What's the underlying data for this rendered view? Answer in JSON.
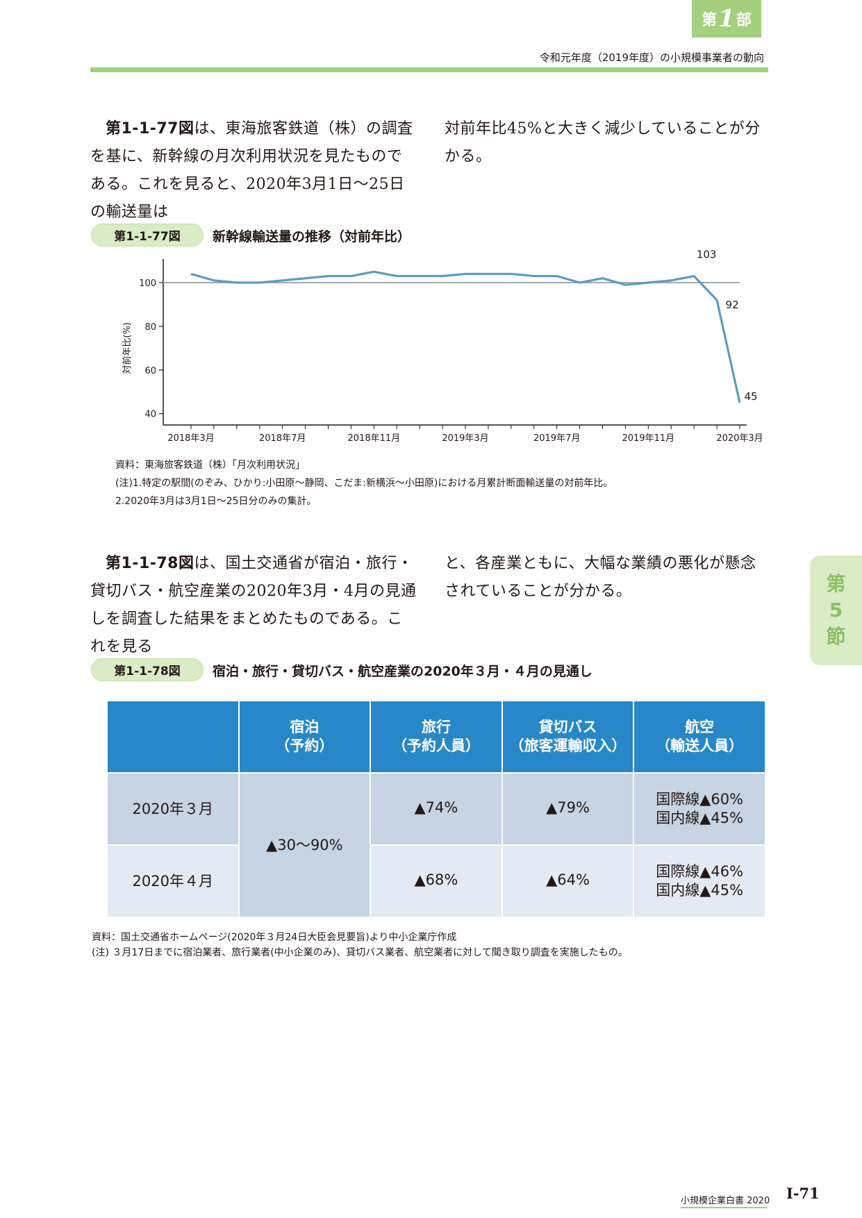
{
  "header": {
    "part_prefix": "第",
    "part_number": "1",
    "part_suffix": "部",
    "running_title": "令和元年度（2019年度）の小規模事業者の動向"
  },
  "intro1": {
    "fig_ref": "第1-1-77図",
    "left_text": "は、東海旅客鉄道（株）の調査を基に、新幹線の月次利用状況を見たものである。これを見ると、2020年3月1日〜25日の輸送量は",
    "right_text": "対前年比45%と大きく減少していることが分かる。"
  },
  "figure77": {
    "label": "第1-1-77図",
    "title": "新幹線輸送量の推移（対前年比）",
    "source": "資料：東海旅客鉄道（株）「月次利用状況」",
    "note1": "(注)1.特定の駅間(のぞみ、ひかり:小田原〜静岡、こだま:新横浜〜小田原)における月累計断面輸送量の対前年比。",
    "note2": "2.2020年3月は3月1日〜25日分のみの集計。"
  },
  "chart_data": {
    "type": "line",
    "title": "",
    "ylabel": "対前年比(%)",
    "xlabel": "",
    "ylim": [
      38,
      107
    ],
    "yticks": [
      40,
      60,
      80,
      100
    ],
    "reference_line": 100,
    "x": [
      "2018年3月",
      "2018年4月",
      "2018年5月",
      "2018年6月",
      "2018年7月",
      "2018年8月",
      "2018年9月",
      "2018年10月",
      "2018年11月",
      "2018年12月",
      "2019年1月",
      "2019年2月",
      "2019年3月",
      "2019年4月",
      "2019年5月",
      "2019年6月",
      "2019年7月",
      "2019年8月",
      "2019年9月",
      "2019年10月",
      "2019年11月",
      "2019年12月",
      "2020年1月",
      "2020年2月",
      "2020年3月"
    ],
    "xtick_labels": [
      "2018年3月",
      "2018年7月",
      "2018年11月",
      "2019年3月",
      "2019年7月",
      "2019年11月",
      "2020年3月"
    ],
    "series": [
      {
        "name": "",
        "color": "#5b9bc4",
        "values": [
          104,
          101,
          100,
          100,
          101,
          102,
          103,
          103,
          105,
          103,
          103,
          103,
          104,
          104,
          104,
          103,
          103,
          100,
          102,
          99,
          100,
          101,
          103,
          92,
          45
        ]
      }
    ],
    "annotations": [
      {
        "x": "2020年1月",
        "label": "103"
      },
      {
        "x": "2020年2月",
        "label": "92"
      },
      {
        "x": "2020年3月",
        "label": "45"
      }
    ],
    "ref_color": "#a7a9ac"
  },
  "intro2": {
    "fig_ref": "第1-1-78図",
    "left_text": "は、国土交通省が宿泊・旅行・貸切バス・航空産業の2020年3月・4月の見通しを調査した結果をまとめたものである。これを見る",
    "right_text": "と、各産業ともに、大幅な業績の悪化が懸念されていることが分かる。"
  },
  "section_tab": {
    "line1": "第",
    "line2": "5",
    "line3": "節"
  },
  "figure78": {
    "label": "第1-1-78図",
    "title": "宿泊・旅行・貸切バス・航空産業の2020年３月・４月の見通し",
    "headers": [
      {
        "line1": "宿泊",
        "line2": "（予約）"
      },
      {
        "line1": "旅行",
        "line2": "（予約人員）"
      },
      {
        "line1": "貸切バス",
        "line2": "（旅客運輸収入）"
      },
      {
        "line1": "航空",
        "line2": "（輸送人員）"
      }
    ],
    "rows": [
      {
        "label": "2020年３月",
        "travel": "▲74%",
        "bus": "▲79%",
        "air1": "国際線▲60%",
        "air2": "国内線▲45%"
      },
      {
        "label": "2020年４月",
        "travel": "▲68%",
        "bus": "▲64%",
        "air1": "国際線▲46%",
        "air2": "国内線▲45%"
      }
    ],
    "lodging_merged": "▲30〜90%",
    "source": "資料：国土交通省ホームページ(2020年３月24日大臣会見要旨)より中小企業庁作成",
    "note": "(注) ３月17日までに宿泊業者、旅行業者(中小企業のみ)、貸切バス業者、航空業者に対して聞き取り調査を実施したもの。"
  },
  "footer": {
    "book_title": "小規模企業白書 2020",
    "page_number": "I-71"
  },
  "colors": {
    "green": "#a4cf7e",
    "light_green": "#d9ecc6",
    "table_header": "#2787c8"
  }
}
